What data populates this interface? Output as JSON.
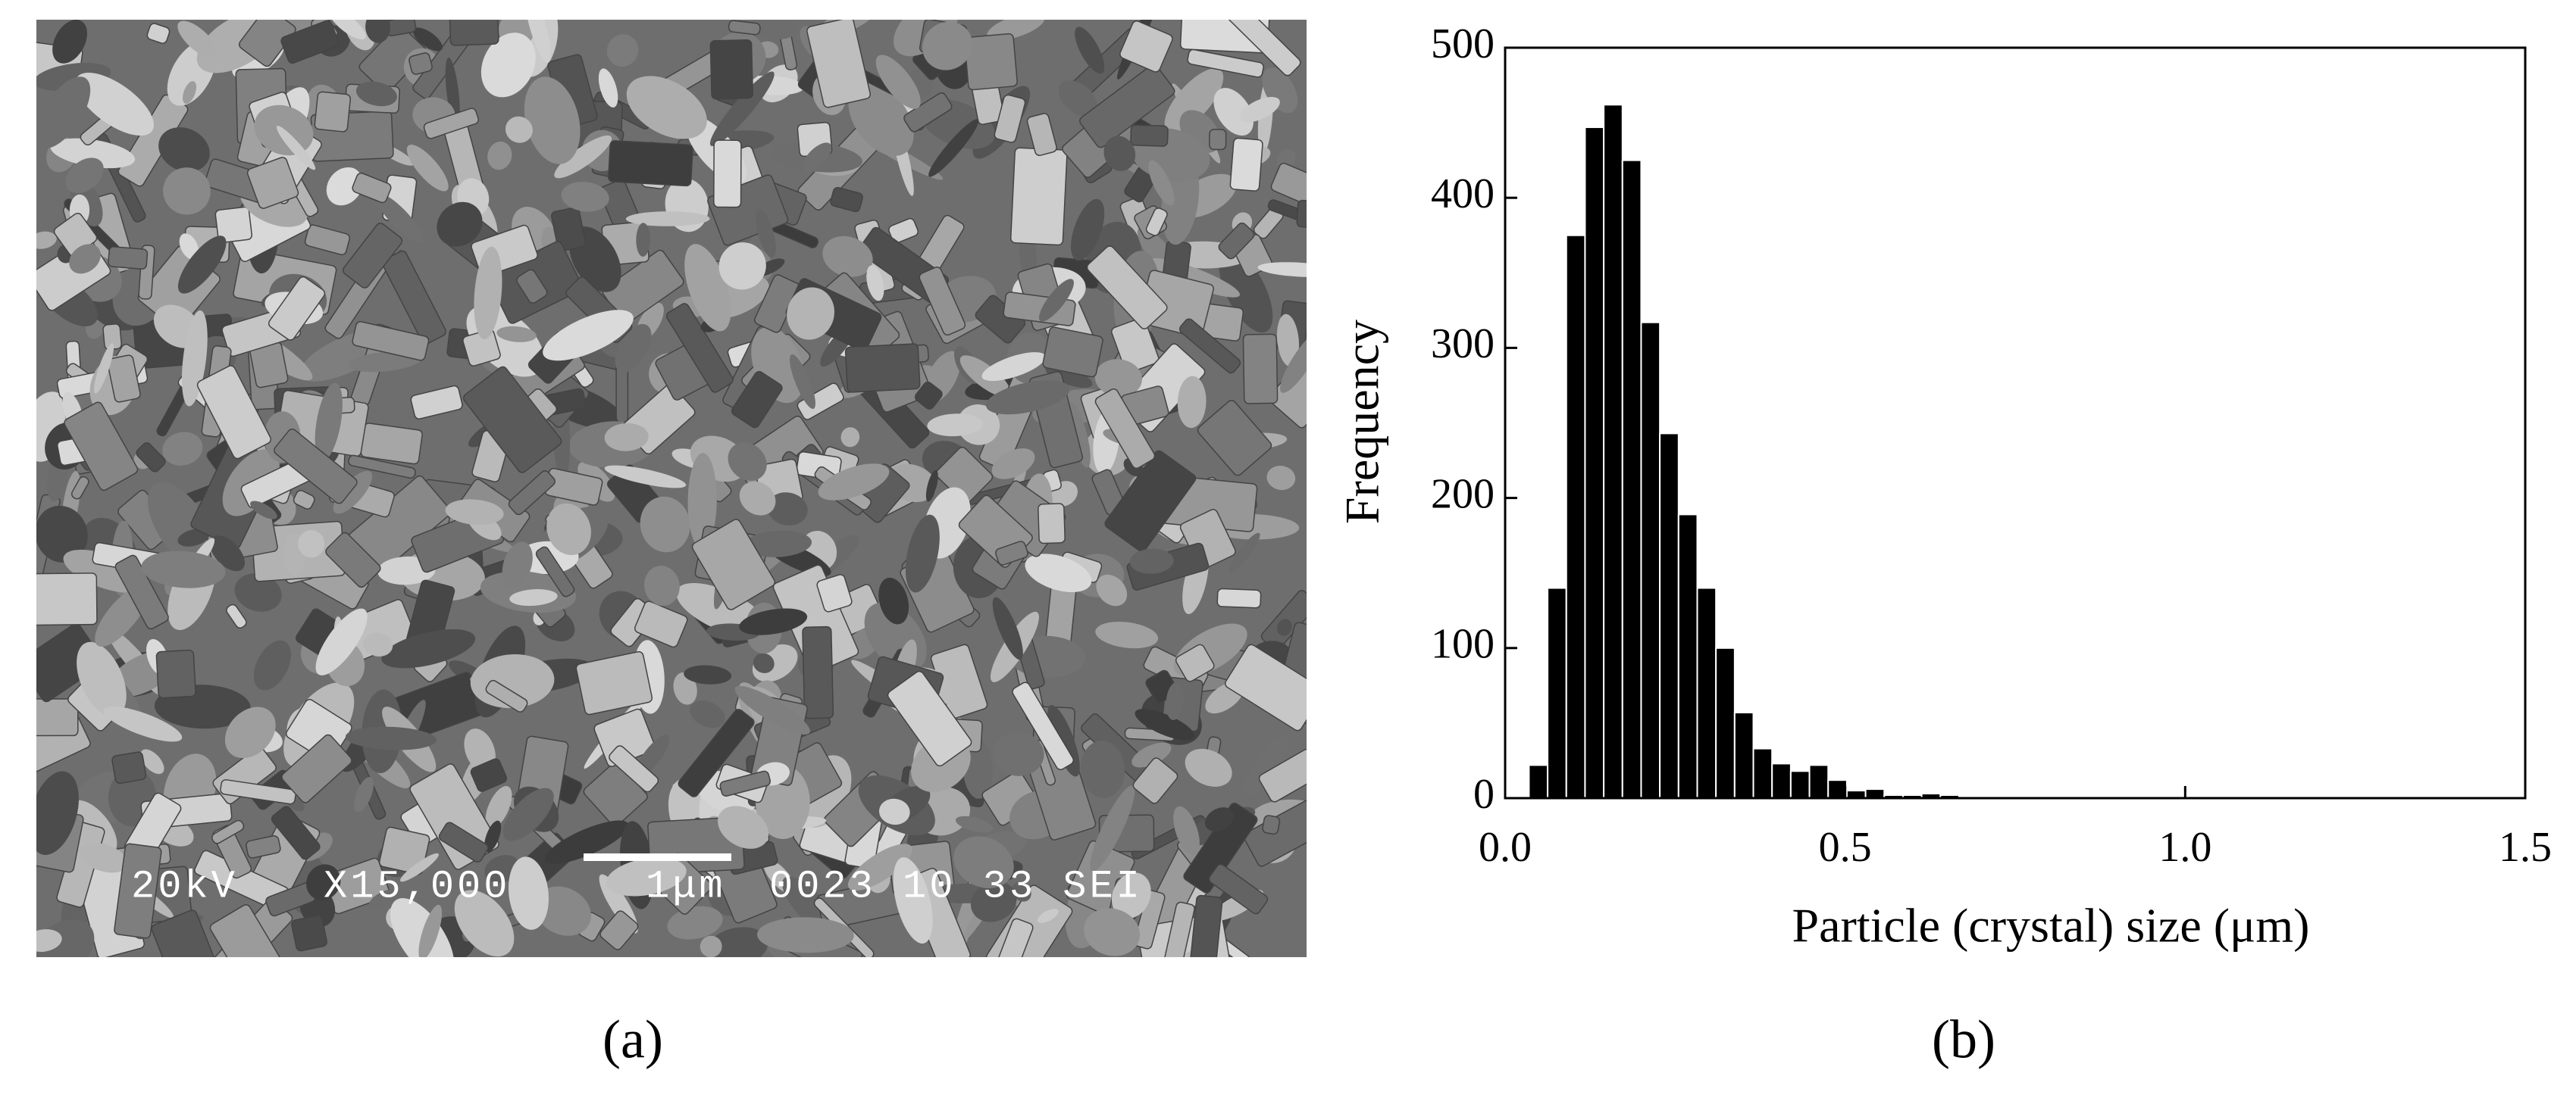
{
  "panels": {
    "a": {
      "label": "(a)",
      "sem_info": {
        "voltage": "20kV",
        "magnification": "X15,000",
        "scale": "1μm",
        "id": "0023 10 33 SEI"
      }
    },
    "b": {
      "label": "(b)"
    }
  },
  "chart_data": {
    "type": "histogram",
    "x_label": "Particle (crystal) size (μm)",
    "y_label": "Frequency",
    "color": "#000000",
    "bins": [
      0.035,
      0.0625,
      0.09,
      0.1175,
      0.145,
      0.1725,
      0.2,
      0.2275,
      0.255,
      0.2825,
      0.31,
      0.3375,
      0.365,
      0.3925,
      0.42,
      0.4475,
      0.475,
      0.5025,
      0.53,
      0.5575,
      0.585,
      0.6125,
      0.64,
      0.6675,
      0.695,
      0.7225,
      0.75
    ],
    "values": [
      22,
      140,
      375,
      447,
      462,
      425,
      317,
      243,
      189,
      140,
      100,
      57,
      33,
      23,
      18,
      22,
      12,
      5,
      6,
      2,
      2,
      3,
      2,
      1,
      1,
      1
    ],
    "xlim": [
      0,
      1.5
    ],
    "xticks": [
      {
        "value": 0,
        "label": "0.0"
      },
      0.5,
      {
        "value": 1,
        "label": "1.0"
      },
      1.5
    ],
    "ylim": [
      0,
      500
    ],
    "yticks": [
      0,
      100,
      200,
      300,
      400,
      500
    ],
    "grid": false
  }
}
